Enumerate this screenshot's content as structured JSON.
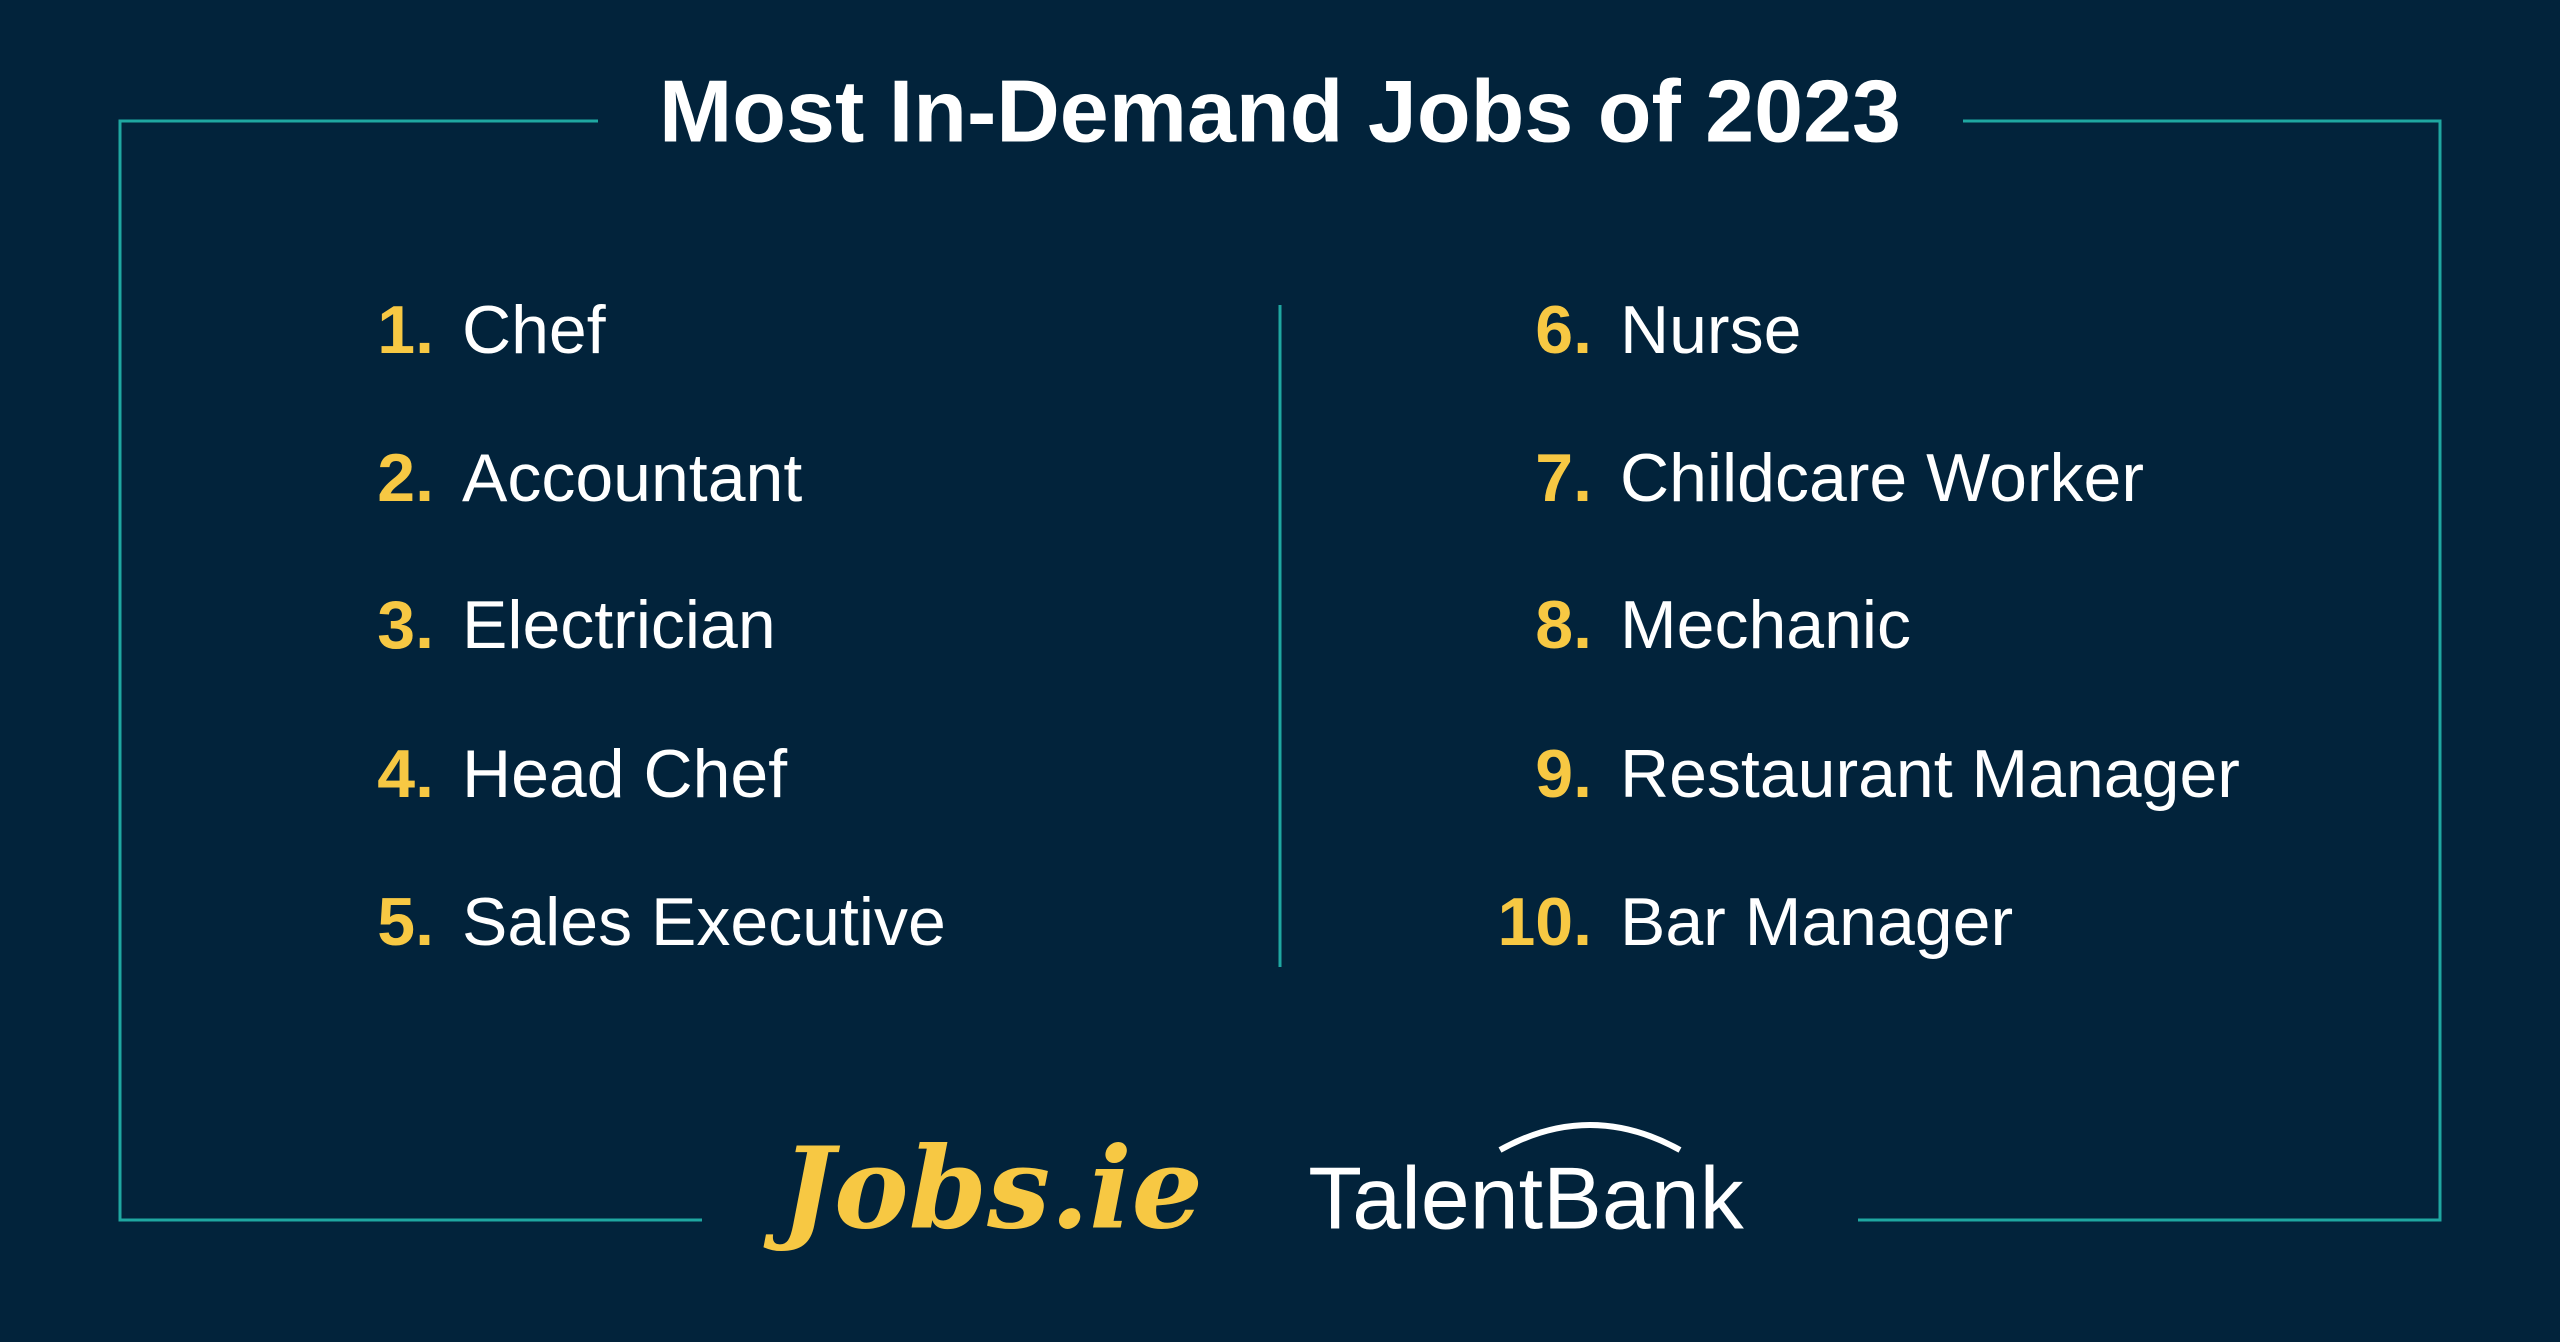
{
  "title": "Most In-Demand Jobs of 2023",
  "items": [
    {
      "number": "1.",
      "job": "Chef"
    },
    {
      "number": "2.",
      "job": "Accountant"
    },
    {
      "number": "3.",
      "job": "Electrician"
    },
    {
      "number": "4.",
      "job": "Head Chef"
    },
    {
      "number": "5.",
      "job": "Sales Executive"
    },
    {
      "number": "6.",
      "job": "Nurse"
    },
    {
      "number": "7.",
      "job": "Childcare Worker"
    },
    {
      "number": "8.",
      "job": "Mechanic"
    },
    {
      "number": "9.",
      "job": "Restaurant Manager"
    },
    {
      "number": "10.",
      "job": "Bar Manager"
    }
  ],
  "logos": [
    "Jobs.ie",
    "TalentBank"
  ]
}
